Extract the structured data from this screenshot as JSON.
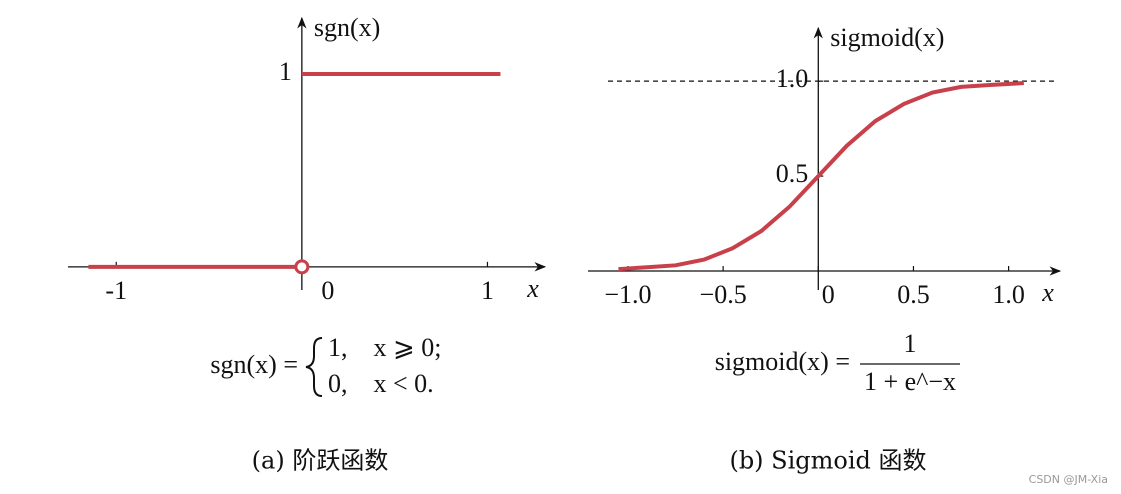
{
  "chart_data": [
    {
      "type": "line",
      "ylabel": "sgn(x)",
      "xlabel": "x",
      "x": [
        -1.15,
        0,
        0,
        0,
        1.07
      ],
      "series": [
        {
          "color": "#c8404a",
          "values": [
            0,
            0,
            null,
            1,
            1
          ]
        }
      ],
      "xlim": [
        -1.26,
        1.31
      ],
      "ylim": [
        -0.12,
        1.29
      ],
      "xticks": [
        -1,
        0,
        1
      ],
      "yticks": [
        1
      ],
      "formula": {
        "lhs": "sgn(x) =",
        "cases": [
          "1,    x ⩾ 0;",
          "0,    x < 0."
        ]
      },
      "caption": "(a) 阶跃函数"
    },
    {
      "type": "line",
      "ylabel": "sigmoid(x)",
      "xlabel": "x",
      "x": [
        -1.05,
        -0.9,
        -0.75,
        -0.6,
        -0.45,
        -0.3,
        -0.15,
        0,
        0.15,
        0.3,
        0.45,
        0.6,
        0.75,
        0.9,
        1.08
      ],
      "series": [
        {
          "color": "#c8404a",
          "values": [
            0.01,
            0.02,
            0.03,
            0.06,
            0.12,
            0.21,
            0.34,
            0.5,
            0.66,
            0.79,
            0.88,
            0.94,
            0.97,
            0.98,
            0.99
          ]
        }
      ],
      "xlim": [
        -1.21,
        1.27
      ],
      "ylim": [
        -0.1,
        1.28
      ],
      "xticks": [
        {
          "value": -1,
          "label": "−1.0"
        },
        {
          "value": -0.5,
          "label": "−0.5"
        },
        0,
        0.5,
        {
          "value": 1,
          "label": "1.0"
        }
      ],
      "yticks": [
        0.5,
        {
          "value": 1,
          "label": "1.0"
        }
      ],
      "hline": 1,
      "formula": {
        "lhs": "sigmoid(x) =",
        "numerator": "1",
        "denominator": "1 + e^−x"
      },
      "caption": "(b) Sigmoid 函数"
    }
  ],
  "watermark": "CSDN @JM-Xia"
}
